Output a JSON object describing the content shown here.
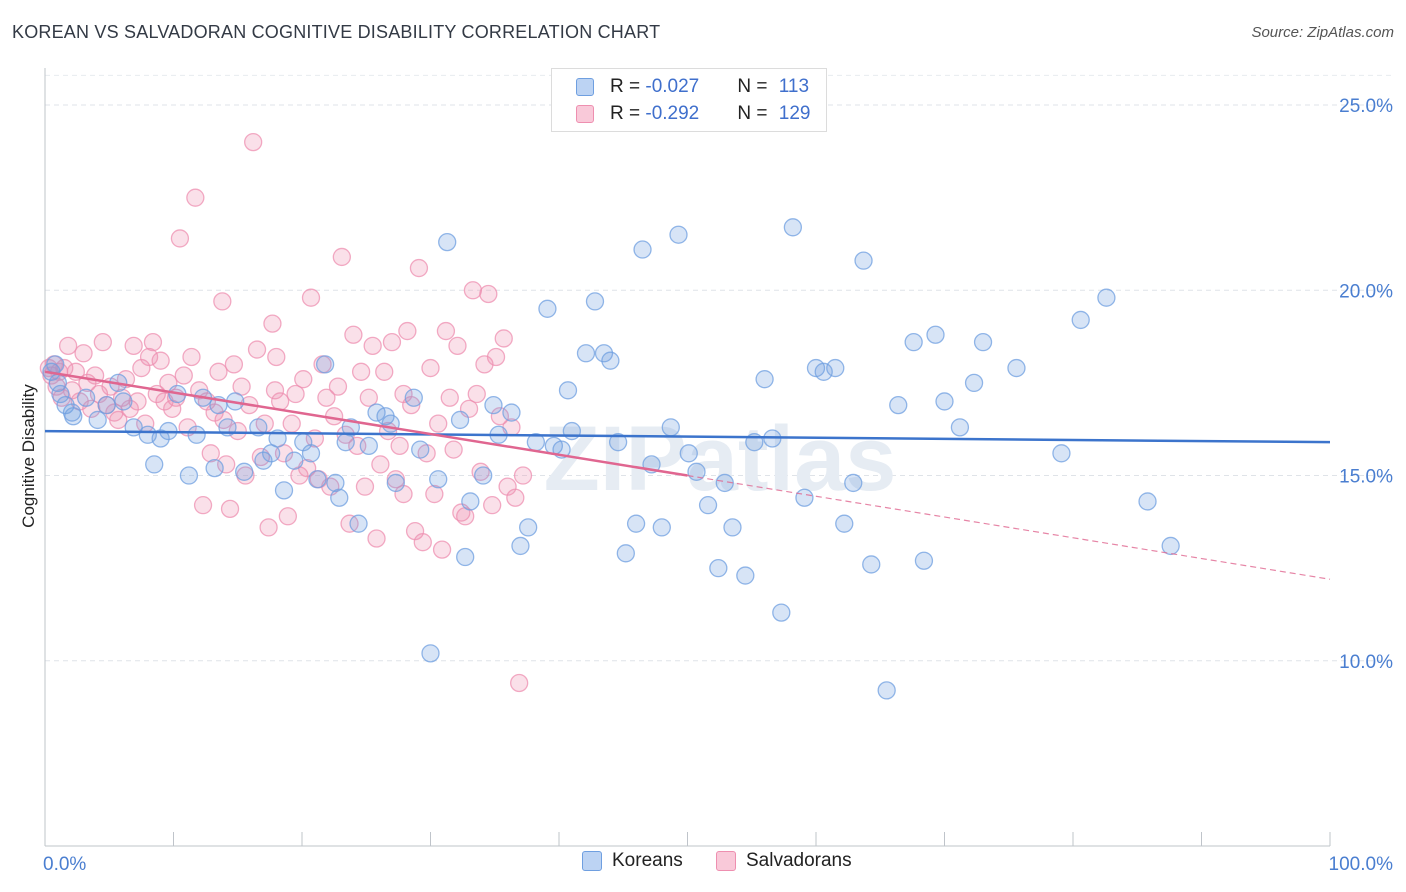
{
  "title": "KOREAN VS SALVADORAN COGNITIVE DISABILITY CORRELATION CHART",
  "source": "Source: ZipAtlas.com",
  "watermark": "ZIPatlas",
  "legend_stats": [
    {
      "r_label": "R = ",
      "r_value": "-0.027",
      "n_label": "N = ",
      "n_value": "113"
    },
    {
      "r_label": "R = ",
      "r_value": "-0.292",
      "n_label": "N = ",
      "n_value": "129"
    }
  ],
  "chart_data": {
    "type": "scatter",
    "title": "KOREAN VS SALVADORAN COGNITIVE DISABILITY CORRELATION CHART",
    "xlabel": "",
    "ylabel": "Cognitive Disability",
    "xlim": [
      0,
      100
    ],
    "ylim": [
      5.0,
      26.0
    ],
    "x_tick_labels": [
      "0.0%",
      "100.0%"
    ],
    "y_ticks": [
      10,
      15,
      20,
      25
    ],
    "y_tick_labels": [
      "10.0%",
      "15.0%",
      "20.0%",
      "25.0%"
    ],
    "grid": "horizontal dashed",
    "legend_position": "bottom-center",
    "colors": {
      "koreans": "#6f9fe0",
      "koreans_line": "#3c74cc",
      "salvadorans": "#ee8fb0",
      "salvadorans_line": "#e06690"
    },
    "series": [
      {
        "name": "Koreans",
        "trend": {
          "x": [
            0,
            100
          ],
          "y": [
            16.2,
            15.9
          ]
        },
        "points": [
          [
            0.5,
            17.8
          ],
          [
            0.8,
            18.0
          ],
          [
            1.0,
            17.5
          ],
          [
            1.2,
            17.2
          ],
          [
            1.6,
            16.9
          ],
          [
            2.2,
            16.6
          ],
          [
            3.2,
            17.1
          ],
          [
            4.1,
            16.5
          ],
          [
            4.8,
            16.9
          ],
          [
            6.1,
            17.0
          ],
          [
            6.9,
            16.3
          ],
          [
            8.0,
            16.1
          ],
          [
            8.5,
            15.3
          ],
          [
            9.0,
            16.0
          ],
          [
            9.6,
            16.2
          ],
          [
            10.3,
            17.2
          ],
          [
            11.2,
            15.0
          ],
          [
            11.8,
            16.1
          ],
          [
            13.2,
            15.2
          ],
          [
            13.5,
            16.9
          ],
          [
            14.2,
            16.3
          ],
          [
            14.8,
            17.0
          ],
          [
            15.5,
            15.1
          ],
          [
            16.6,
            16.3
          ],
          [
            17.0,
            15.4
          ],
          [
            17.6,
            15.6
          ],
          [
            18.1,
            16.0
          ],
          [
            18.6,
            14.6
          ],
          [
            19.4,
            15.4
          ],
          [
            20.1,
            15.9
          ],
          [
            20.7,
            15.6
          ],
          [
            21.2,
            14.9
          ],
          [
            21.8,
            18.0
          ],
          [
            22.6,
            14.8
          ],
          [
            22.9,
            14.4
          ],
          [
            23.4,
            15.9
          ],
          [
            23.8,
            16.3
          ],
          [
            24.4,
            13.7
          ],
          [
            25.2,
            15.8
          ],
          [
            25.8,
            16.7
          ],
          [
            26.5,
            16.6
          ],
          [
            27.3,
            14.8
          ],
          [
            28.7,
            17.1
          ],
          [
            29.2,
            15.7
          ],
          [
            30.0,
            10.2
          ],
          [
            30.6,
            14.9
          ],
          [
            31.3,
            21.3
          ],
          [
            32.3,
            16.5
          ],
          [
            32.7,
            12.8
          ],
          [
            33.1,
            14.3
          ],
          [
            34.1,
            15.0
          ],
          [
            35.3,
            16.1
          ],
          [
            36.3,
            16.7
          ],
          [
            37.0,
            13.1
          ],
          [
            37.6,
            13.6
          ],
          [
            38.2,
            15.9
          ],
          [
            39.1,
            19.5
          ],
          [
            39.6,
            15.8
          ],
          [
            40.2,
            15.7
          ],
          [
            41.0,
            16.2
          ],
          [
            42.1,
            18.3
          ],
          [
            42.8,
            19.7
          ],
          [
            43.5,
            18.3
          ],
          [
            44.0,
            18.1
          ],
          [
            44.6,
            15.9
          ],
          [
            45.2,
            12.9
          ],
          [
            46.0,
            13.7
          ],
          [
            46.5,
            21.1
          ],
          [
            47.2,
            15.3
          ],
          [
            48.0,
            13.6
          ],
          [
            48.7,
            16.3
          ],
          [
            49.3,
            21.5
          ],
          [
            50.1,
            15.6
          ],
          [
            50.7,
            15.1
          ],
          [
            51.6,
            14.2
          ],
          [
            52.4,
            12.5
          ],
          [
            53.5,
            13.6
          ],
          [
            54.5,
            12.3
          ],
          [
            55.2,
            15.9
          ],
          [
            56.0,
            17.6
          ],
          [
            56.6,
            16.0
          ],
          [
            57.3,
            11.3
          ],
          [
            58.2,
            21.7
          ],
          [
            59.1,
            14.4
          ],
          [
            60.0,
            17.9
          ],
          [
            60.6,
            17.8
          ],
          [
            61.5,
            17.9
          ],
          [
            62.2,
            13.7
          ],
          [
            62.9,
            14.8
          ],
          [
            63.7,
            20.8
          ],
          [
            64.3,
            12.6
          ],
          [
            65.5,
            9.2
          ],
          [
            66.4,
            16.9
          ],
          [
            67.6,
            18.6
          ],
          [
            68.4,
            12.7
          ],
          [
            69.3,
            18.8
          ],
          [
            70.0,
            17.0
          ],
          [
            71.2,
            16.3
          ],
          [
            72.3,
            17.5
          ],
          [
            73.0,
            18.6
          ],
          [
            75.6,
            17.9
          ],
          [
            79.1,
            15.6
          ],
          [
            80.6,
            19.2
          ],
          [
            82.6,
            19.8
          ],
          [
            85.8,
            14.3
          ],
          [
            87.6,
            13.1
          ],
          [
            2.1,
            16.7
          ],
          [
            5.7,
            17.5
          ],
          [
            12.3,
            17.1
          ],
          [
            26.9,
            16.4
          ],
          [
            34.9,
            16.9
          ],
          [
            40.7,
            17.3
          ],
          [
            52.9,
            14.8
          ]
        ]
      },
      {
        "name": "Salvadorans",
        "trend": {
          "x": [
            0,
            50
          ],
          "y": [
            17.8,
            15.0
          ]
        },
        "trend_ext": {
          "x": [
            50,
            100
          ],
          "y": [
            15.0,
            12.2
          ]
        },
        "points": [
          [
            0.3,
            17.9
          ],
          [
            0.5,
            17.7
          ],
          [
            0.7,
            18.0
          ],
          [
            0.9,
            17.4
          ],
          [
            1.1,
            17.8
          ],
          [
            1.3,
            17.1
          ],
          [
            1.5,
            17.9
          ],
          [
            1.8,
            18.5
          ],
          [
            2.1,
            17.3
          ],
          [
            2.4,
            17.8
          ],
          [
            2.7,
            17.0
          ],
          [
            3.0,
            18.3
          ],
          [
            3.3,
            17.5
          ],
          [
            3.6,
            16.8
          ],
          [
            3.9,
            17.7
          ],
          [
            4.2,
            17.2
          ],
          [
            4.5,
            18.6
          ],
          [
            4.8,
            16.9
          ],
          [
            5.1,
            17.4
          ],
          [
            5.4,
            16.7
          ],
          [
            5.7,
            16.5
          ],
          [
            6.0,
            17.1
          ],
          [
            6.3,
            17.6
          ],
          [
            6.6,
            16.8
          ],
          [
            6.9,
            18.5
          ],
          [
            7.2,
            17.0
          ],
          [
            7.5,
            17.9
          ],
          [
            7.8,
            16.4
          ],
          [
            8.1,
            18.2
          ],
          [
            8.4,
            18.6
          ],
          [
            8.7,
            17.2
          ],
          [
            9.0,
            18.1
          ],
          [
            9.3,
            17.0
          ],
          [
            9.6,
            17.5
          ],
          [
            9.9,
            16.8
          ],
          [
            10.2,
            17.1
          ],
          [
            10.5,
            21.4
          ],
          [
            10.8,
            17.7
          ],
          [
            11.1,
            16.3
          ],
          [
            11.4,
            18.2
          ],
          [
            11.7,
            22.5
          ],
          [
            12.0,
            17.3
          ],
          [
            12.3,
            14.2
          ],
          [
            12.6,
            17.0
          ],
          [
            12.9,
            15.6
          ],
          [
            13.2,
            16.7
          ],
          [
            13.5,
            17.8
          ],
          [
            13.8,
            19.7
          ],
          [
            14.1,
            15.3
          ],
          [
            14.4,
            14.1
          ],
          [
            14.7,
            18.0
          ],
          [
            15.0,
            16.2
          ],
          [
            15.3,
            17.4
          ],
          [
            15.6,
            15.0
          ],
          [
            15.9,
            16.9
          ],
          [
            16.2,
            24.0
          ],
          [
            16.5,
            18.4
          ],
          [
            16.8,
            15.5
          ],
          [
            17.1,
            16.4
          ],
          [
            17.4,
            13.6
          ],
          [
            17.7,
            19.1
          ],
          [
            18.0,
            18.2
          ],
          [
            18.3,
            17.0
          ],
          [
            18.6,
            15.6
          ],
          [
            18.9,
            13.9
          ],
          [
            19.2,
            16.4
          ],
          [
            19.5,
            17.2
          ],
          [
            19.8,
            15.0
          ],
          [
            20.1,
            17.6
          ],
          [
            20.4,
            15.2
          ],
          [
            20.7,
            19.8
          ],
          [
            21.0,
            16.0
          ],
          [
            21.3,
            14.9
          ],
          [
            21.6,
            18.0
          ],
          [
            21.9,
            17.1
          ],
          [
            22.2,
            14.7
          ],
          [
            22.5,
            16.6
          ],
          [
            22.8,
            17.4
          ],
          [
            23.1,
            20.9
          ],
          [
            23.4,
            16.1
          ],
          [
            23.7,
            13.7
          ],
          [
            24.0,
            18.8
          ],
          [
            24.3,
            15.8
          ],
          [
            24.6,
            17.8
          ],
          [
            24.9,
            14.7
          ],
          [
            25.2,
            17.1
          ],
          [
            25.5,
            18.5
          ],
          [
            25.8,
            13.3
          ],
          [
            26.1,
            15.3
          ],
          [
            26.4,
            17.8
          ],
          [
            26.7,
            16.2
          ],
          [
            27.0,
            18.6
          ],
          [
            27.3,
            14.9
          ],
          [
            27.6,
            15.8
          ],
          [
            27.9,
            17.2
          ],
          [
            28.2,
            18.9
          ],
          [
            28.5,
            16.9
          ],
          [
            28.8,
            13.5
          ],
          [
            29.1,
            20.6
          ],
          [
            29.4,
            13.2
          ],
          [
            29.7,
            15.6
          ],
          [
            30.0,
            17.9
          ],
          [
            30.3,
            14.5
          ],
          [
            30.6,
            16.4
          ],
          [
            30.9,
            13.0
          ],
          [
            31.2,
            18.9
          ],
          [
            31.5,
            17.1
          ],
          [
            31.8,
            15.7
          ],
          [
            32.1,
            18.5
          ],
          [
            32.4,
            14.0
          ],
          [
            32.7,
            13.9
          ],
          [
            33.0,
            16.8
          ],
          [
            33.3,
            20.0
          ],
          [
            33.6,
            17.2
          ],
          [
            33.9,
            15.1
          ],
          [
            34.2,
            18.0
          ],
          [
            34.5,
            19.9
          ],
          [
            34.8,
            14.2
          ],
          [
            35.1,
            18.2
          ],
          [
            35.4,
            16.6
          ],
          [
            35.7,
            18.7
          ],
          [
            36.0,
            14.7
          ],
          [
            36.3,
            16.3
          ],
          [
            36.6,
            14.4
          ],
          [
            36.9,
            9.4
          ],
          [
            37.2,
            15.0
          ],
          [
            13.9,
            16.5
          ],
          [
            27.9,
            14.5
          ],
          [
            17.9,
            17.3
          ]
        ]
      }
    ]
  },
  "bottom_legend": [
    {
      "label": "Koreans"
    },
    {
      "label": "Salvadorans"
    }
  ]
}
